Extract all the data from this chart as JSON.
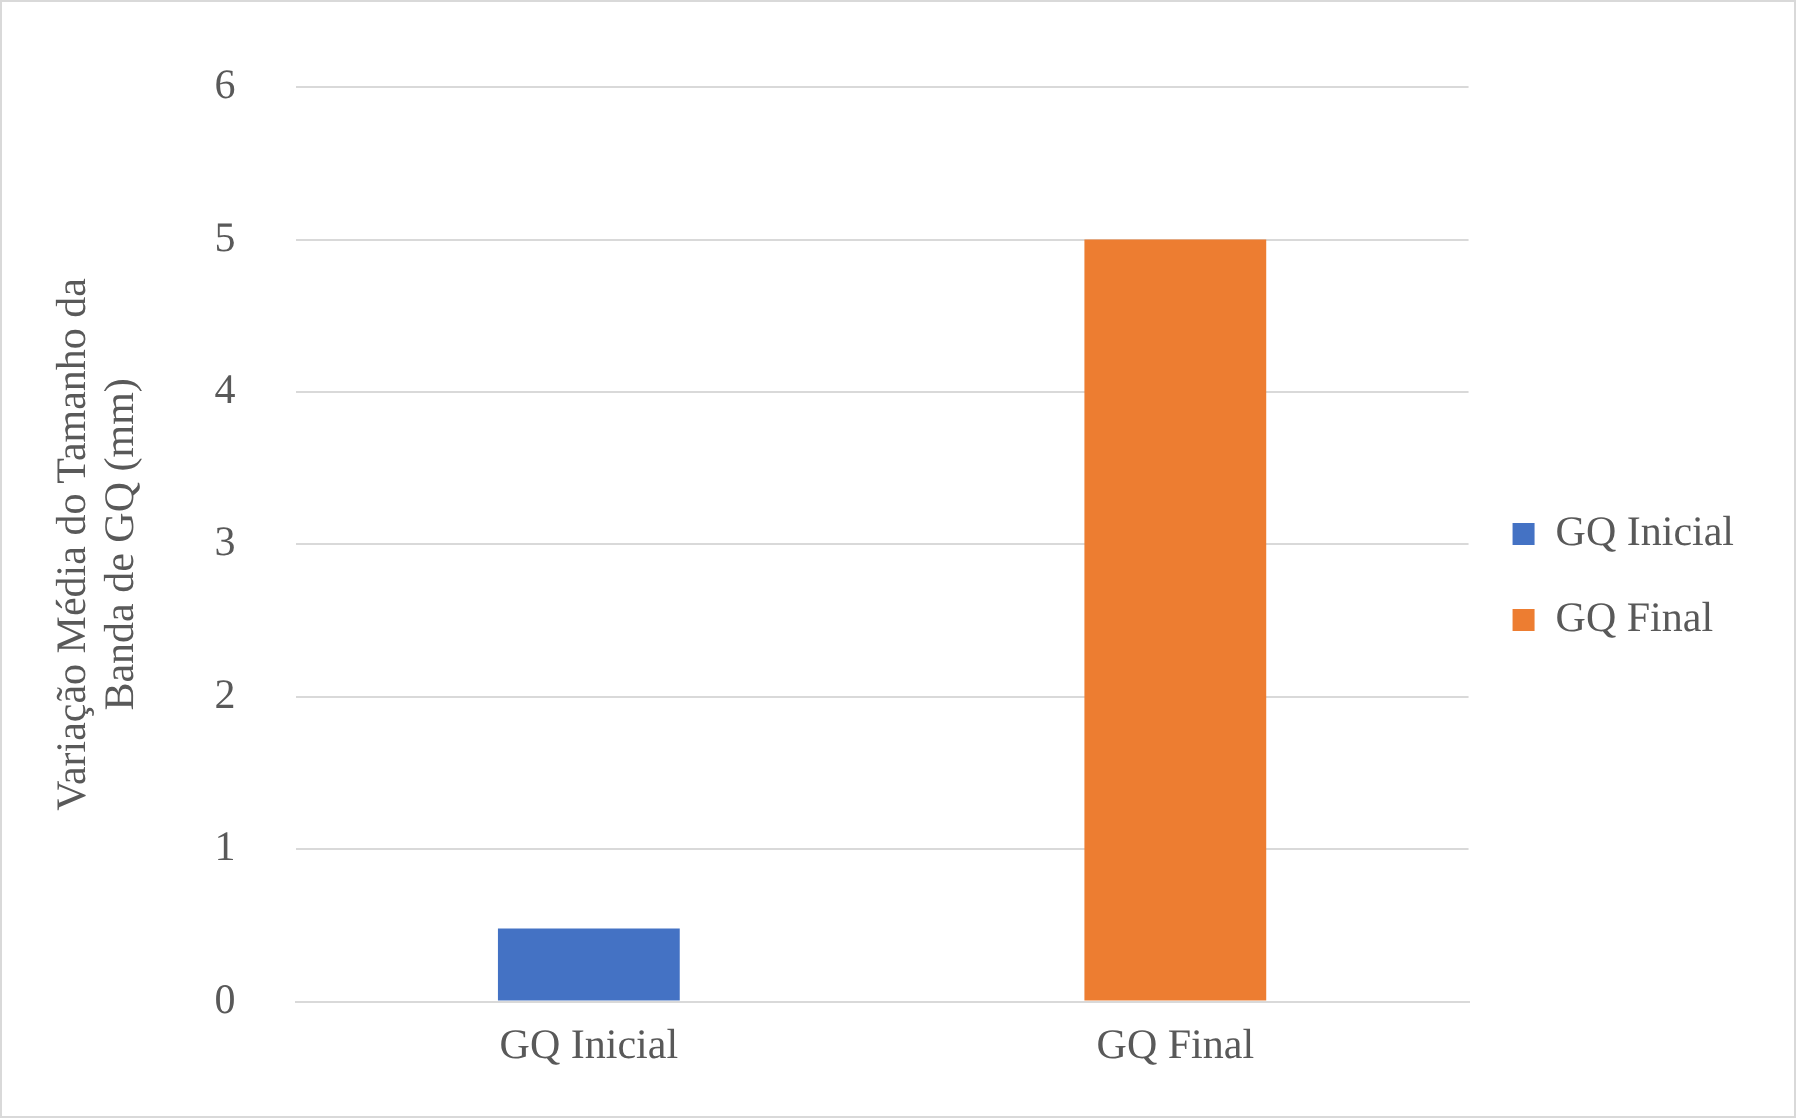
{
  "chart_data": {
    "type": "bar",
    "ylabel": "Variação Média do Tamanho da Banda de GQ (mm)",
    "categories": [
      "GQ Inicial",
      "GQ Final"
    ],
    "series": [
      {
        "name": "GQ Inicial",
        "color": "#4472c4",
        "values": [
          0.48,
          null
        ]
      },
      {
        "name": "GQ Final",
        "color": "#ed7d31",
        "values": [
          null,
          5
        ]
      }
    ],
    "ylim": [
      0,
      6
    ],
    "yticks": [
      0,
      1,
      2,
      3,
      4,
      5,
      6
    ],
    "grid": "y",
    "legend": "right"
  }
}
